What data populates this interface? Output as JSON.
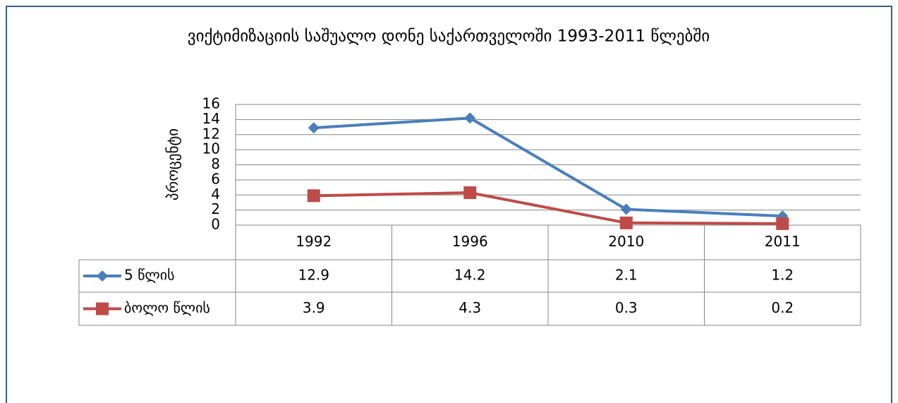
{
  "chart_data": {
    "type": "line",
    "title": "ვიქტიმიზაციის საშუალო დონე  საქართველოში 1993-2011 წლებში",
    "y_label": "პროცენტი",
    "categories": [
      "1992",
      "1996",
      "2010",
      "2011"
    ],
    "series": [
      {
        "name": "5 წლის",
        "color": "#4a7ebb",
        "marker": "diamond",
        "values": [
          12.9,
          14.2,
          2.1,
          1.2
        ]
      },
      {
        "name": "ბოლო წლის",
        "color": "#be4b48",
        "marker": "square",
        "values": [
          3.9,
          4.3,
          0.3,
          0.2
        ]
      }
    ],
    "ylim": [
      0,
      16
    ],
    "yticks": [
      0,
      2,
      4,
      6,
      8,
      10,
      12,
      14,
      16
    ],
    "grid": true,
    "data_table": true
  }
}
